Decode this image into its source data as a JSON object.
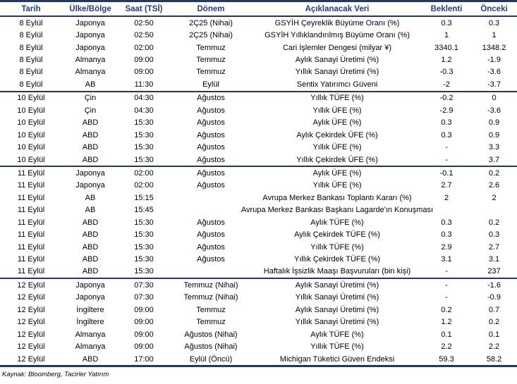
{
  "colors": {
    "header_text": "#1F3D91",
    "line": "#1F3864",
    "body_text": "#000000"
  },
  "table": {
    "columns": [
      {
        "key": "date",
        "label": "Tarih"
      },
      {
        "key": "region",
        "label": "Ülke/Bölge"
      },
      {
        "key": "time",
        "label": "Saat (TSİ)"
      },
      {
        "key": "period",
        "label": "Dönem"
      },
      {
        "key": "metric",
        "label": "Açıklanacak Veri"
      },
      {
        "key": "expected",
        "label": "Beklenti"
      },
      {
        "key": "previous",
        "label": "Önceki"
      }
    ],
    "groups": [
      {
        "date": "8 Eylül",
        "rows": [
          [
            "8 Eylül",
            "Japonya",
            "02:50",
            "2Ç25 (Nihai)",
            "GSYİH Çeyreklik Büyüme Oranı (%)",
            "0.3",
            "0.3"
          ],
          [
            "8 Eylül",
            "Japonya",
            "02:50",
            "2Ç25 (Nihai)",
            "GSYİH Yıllıklandırılmış Büyüme Oranı (%)",
            "1",
            "1"
          ],
          [
            "8 Eylül",
            "Japonya",
            "02:00",
            "Temmuz",
            "Cari İşlemler Dengesi (milyar ¥)",
            "3340.1",
            "1348.2"
          ],
          [
            "8 Eylül",
            "Almanya",
            "09:00",
            "Temmuz",
            "Aylık Sanayi Üretimi (%)",
            "1.2",
            "-1.9"
          ],
          [
            "8 Eylül",
            "Almanya",
            "09:00",
            "Temmuz",
            "Yıllık Sanayi Üretimi (%)",
            "-0.3",
            "-3.6"
          ],
          [
            "8 Eylül",
            "AB",
            "11:30",
            "Eylül",
            "Sentix Yatırımcı Güveni",
            "-2",
            "-3.7"
          ]
        ]
      },
      {
        "date": "10 Eylül",
        "rows": [
          [
            "10 Eylül",
            "Çin",
            "04:30",
            "Ağustos",
            "Yıllık TÜFE (%)",
            "-0.2",
            "0"
          ],
          [
            "10 Eylül",
            "Çin",
            "04:30",
            "Ağustos",
            "Yıllık ÜFE (%)",
            "-2.9",
            "-3.6"
          ],
          [
            "10 Eylül",
            "ABD",
            "15:30",
            "Ağustos",
            "Aylık ÜFE (%)",
            "0.3",
            "0.9"
          ],
          [
            "10 Eylül",
            "ABD",
            "15:30",
            "Ağustos",
            "Aylık Çekirdek ÜFE (%)",
            "0.3",
            "0.9"
          ],
          [
            "10 Eylül",
            "ABD",
            "15:30",
            "Ağustos",
            "Yıllık ÜFE (%)",
            "-",
            "3.3"
          ],
          [
            "10 Eylül",
            "ABD",
            "15:30",
            "Ağustos",
            "Yıllık Çekirdek ÜFE (%)",
            "-",
            "3.7"
          ]
        ]
      },
      {
        "date": "11 Eylül",
        "rows": [
          [
            "11 Eylül",
            "Japonya",
            "02:00",
            "Ağustos",
            "Aylık ÜFE (%)",
            "-0.1",
            "0.2"
          ],
          [
            "11 Eylül",
            "Japonya",
            "02:00",
            "Ağustos",
            "Yıllık ÜFE (%)",
            "2.7",
            "2.6"
          ],
          [
            "11 Eylül",
            "AB",
            "15:15",
            "",
            "Avrupa Merkez Bankası Toplantı Kararı (%)",
            "2",
            "2"
          ],
          [
            "11 Eylül",
            "AB",
            "15:45",
            "",
            "Avrupa Merkez Bankası Başkanı Lagarde'ın Konuşması",
            "",
            ""
          ],
          [
            "11 Eylül",
            "ABD",
            "15:30",
            "Ağustos",
            "Aylık TÜFE (%)",
            "0.3",
            "0.2"
          ],
          [
            "11 Eylül",
            "ABD",
            "15:30",
            "Ağustos",
            "Aylık Çekirdek TÜFE (%)",
            "0.3",
            "0.3"
          ],
          [
            "11 Eylül",
            "ABD",
            "15:30",
            "Ağustos",
            "Yıllık TÜFE (%)",
            "2.9",
            "2.7"
          ],
          [
            "11 Eylül",
            "ABD",
            "15:30",
            "Ağustos",
            "Yıllık Çekirdek TÜFE (%)",
            "3.1",
            "3.1"
          ],
          [
            "11 Eylül",
            "ABD",
            "15:30",
            "",
            "Haftalık İşsizlik Maaşı Başvuruları (bin kişi)",
            "-",
            "237"
          ]
        ]
      },
      {
        "date": "12 Eylül",
        "rows": [
          [
            "12 Eylül",
            "Japonya",
            "07:30",
            "Temmuz (Nihai)",
            "Aylık Sanayi Üretimi (%)",
            "-",
            "-1.6"
          ],
          [
            "12 Eylül",
            "Japonya",
            "07:30",
            "Temmuz (Nihai)",
            "Yıllık Sanayi Üretimi (%)",
            "-",
            "-0.9"
          ],
          [
            "12 Eylül",
            "İngiltere",
            "09:00",
            "Temmuz",
            "Aylık Sanayi Üretimi (%)",
            "0.2",
            "0.7"
          ],
          [
            "12 Eylül",
            "İngiltere",
            "09:00",
            "Temmuz",
            "Yıllık Sanayi Üretimi (%)",
            "1.2",
            "0.2"
          ],
          [
            "12 Eylül",
            "Almanya",
            "09:00",
            "Ağustos (Nihai)",
            "Aylık TÜFE (%)",
            "0.1",
            "0.1"
          ],
          [
            "12 Eylül",
            "Almanya",
            "09:00",
            "Ağustos (Nihai)",
            "Yıllık TÜFE (%)",
            "2.2",
            "2.2"
          ],
          [
            "12 Eylül",
            "ABD",
            "17:00",
            "Eylül (Öncü)",
            "Michigan Tüketici Güven Endeksi",
            "59.3",
            "58.2"
          ]
        ]
      }
    ]
  },
  "footer": {
    "source": "Kaynak: Bloomberg, Tacirler Yatırım"
  }
}
